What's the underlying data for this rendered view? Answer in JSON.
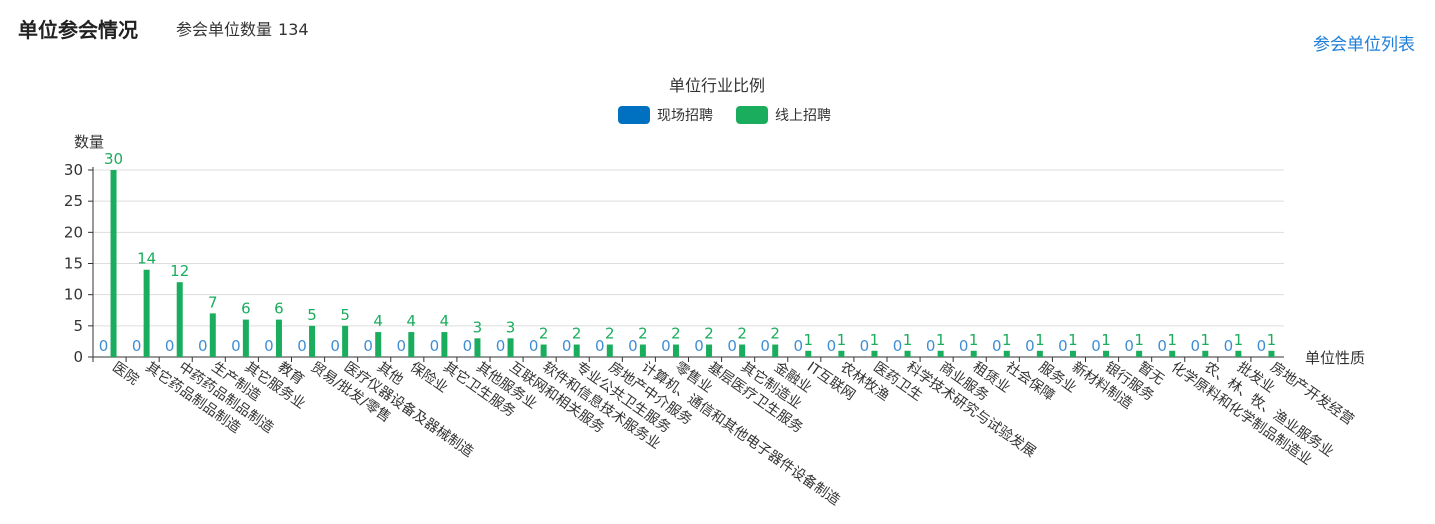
{
  "header": {
    "title": "单位参会情况",
    "count_label": "参会单位数量",
    "count_value": "134",
    "list_link": "参会单位列表"
  },
  "chart_data": {
    "type": "bar",
    "title": "单位行业比例",
    "ylabel": "数量",
    "xlabel": "单位性质",
    "ylim": [
      0,
      30
    ],
    "yticks": [
      0,
      5,
      10,
      15,
      20,
      25,
      30
    ],
    "legend_position": "top-center",
    "grid": true,
    "categories": [
      "医院",
      "其它药品制品制造",
      "中药药品制品制造",
      "生产制造",
      "其它服务业",
      "教育",
      "贸易/批发/零售",
      "医疗仪器设备及器械制造",
      "其他",
      "保险业",
      "其它卫生服务",
      "其他服务业",
      "互联网和相关服务",
      "软件和信息技术服务业",
      "专业公共卫生服务",
      "房地产中介服务",
      "计算机、通信和其他电子器件设备制造",
      "零售业",
      "基层医疗卫生服务",
      "其它制造业",
      "金融业",
      "IT互联网",
      "农林牧渔",
      "医药卫生",
      "科学技术研究与试验发展",
      "商业服务",
      "租赁业",
      "社会保障",
      "服务业",
      "新材料制造",
      "银行服务",
      "暂无",
      "化学原料和化学制品制造业",
      "农、林、牧、渔业服务业",
      "批发业",
      "房地产开发经营"
    ],
    "series": [
      {
        "name": "现场招聘",
        "color": "#0070c0",
        "values": [
          0,
          0,
          0,
          0,
          0,
          0,
          0,
          0,
          0,
          0,
          0,
          0,
          0,
          0,
          0,
          0,
          0,
          0,
          0,
          0,
          0,
          0,
          0,
          0,
          0,
          0,
          0,
          0,
          0,
          0,
          0,
          0,
          0,
          0,
          0,
          0
        ]
      },
      {
        "name": "线上招聘",
        "color": "#1aad5d",
        "values": [
          30,
          14,
          12,
          7,
          6,
          6,
          5,
          5,
          4,
          4,
          4,
          3,
          3,
          2,
          2,
          2,
          2,
          2,
          2,
          2,
          2,
          1,
          1,
          1,
          1,
          1,
          1,
          1,
          1,
          1,
          1,
          1,
          1,
          1,
          1,
          1
        ]
      }
    ],
    "colors": {
      "label_zero": "#3f8ed3",
      "label_value": "#1aad5d",
      "grid": "#dddddd",
      "axis": "#333333"
    }
  }
}
